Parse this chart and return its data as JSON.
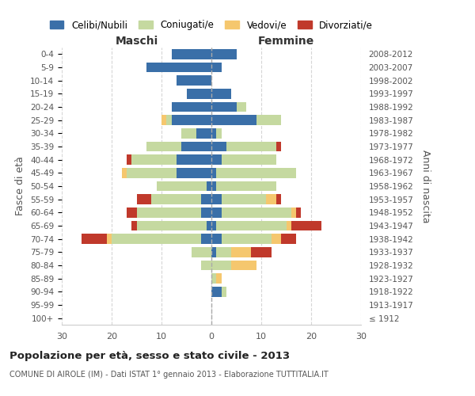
{
  "age_groups": [
    "100+",
    "95-99",
    "90-94",
    "85-89",
    "80-84",
    "75-79",
    "70-74",
    "65-69",
    "60-64",
    "55-59",
    "50-54",
    "45-49",
    "40-44",
    "35-39",
    "30-34",
    "25-29",
    "20-24",
    "15-19",
    "10-14",
    "5-9",
    "0-4"
  ],
  "birth_years": [
    "≤ 1912",
    "1913-1917",
    "1918-1922",
    "1923-1927",
    "1928-1932",
    "1933-1937",
    "1938-1942",
    "1943-1947",
    "1948-1952",
    "1953-1957",
    "1958-1962",
    "1963-1967",
    "1968-1972",
    "1973-1977",
    "1978-1982",
    "1983-1987",
    "1988-1992",
    "1993-1997",
    "1998-2002",
    "2003-2007",
    "2008-2012"
  ],
  "male": {
    "celibi": [
      0,
      0,
      0,
      0,
      0,
      0,
      2,
      1,
      2,
      2,
      1,
      7,
      7,
      6,
      3,
      8,
      8,
      5,
      7,
      13,
      8
    ],
    "coniugati": [
      0,
      0,
      0,
      0,
      2,
      4,
      18,
      14,
      13,
      10,
      10,
      10,
      9,
      7,
      3,
      1,
      0,
      0,
      0,
      0,
      0
    ],
    "vedovi": [
      0,
      0,
      0,
      0,
      0,
      0,
      1,
      0,
      0,
      0,
      0,
      1,
      0,
      0,
      0,
      1,
      0,
      0,
      0,
      0,
      0
    ],
    "divorziati": [
      0,
      0,
      0,
      0,
      0,
      0,
      5,
      1,
      2,
      3,
      0,
      0,
      1,
      0,
      0,
      0,
      0,
      0,
      0,
      0,
      0
    ]
  },
  "female": {
    "nubili": [
      0,
      0,
      2,
      0,
      0,
      1,
      2,
      1,
      2,
      2,
      1,
      1,
      2,
      3,
      1,
      9,
      5,
      4,
      0,
      2,
      5
    ],
    "coniugate": [
      0,
      0,
      1,
      1,
      4,
      3,
      10,
      14,
      14,
      9,
      12,
      16,
      11,
      10,
      1,
      5,
      2,
      0,
      0,
      0,
      0
    ],
    "vedove": [
      0,
      0,
      0,
      1,
      5,
      4,
      2,
      1,
      1,
      2,
      0,
      0,
      0,
      0,
      0,
      0,
      0,
      0,
      0,
      0,
      0
    ],
    "divorziate": [
      0,
      0,
      0,
      0,
      0,
      4,
      3,
      6,
      1,
      1,
      0,
      0,
      0,
      1,
      0,
      0,
      0,
      0,
      0,
      0,
      0
    ]
  },
  "color_celibi": "#3a6fa8",
  "color_coniugati": "#c5d9a0",
  "color_vedovi": "#f5c76e",
  "color_divorziati": "#c0392b",
  "xlim": 30,
  "title": "Popolazione per età, sesso e stato civile - 2013",
  "subtitle": "COMUNE DI AIROLE (IM) - Dati ISTAT 1° gennaio 2013 - Elaborazione TUTTITALIA.IT",
  "ylabel_left": "Fasce di età",
  "ylabel_right": "Anni di nascita",
  "legend_labels": [
    "Celibi/Nubili",
    "Coniugati/e",
    "Vedovi/e",
    "Divorziati/e"
  ]
}
